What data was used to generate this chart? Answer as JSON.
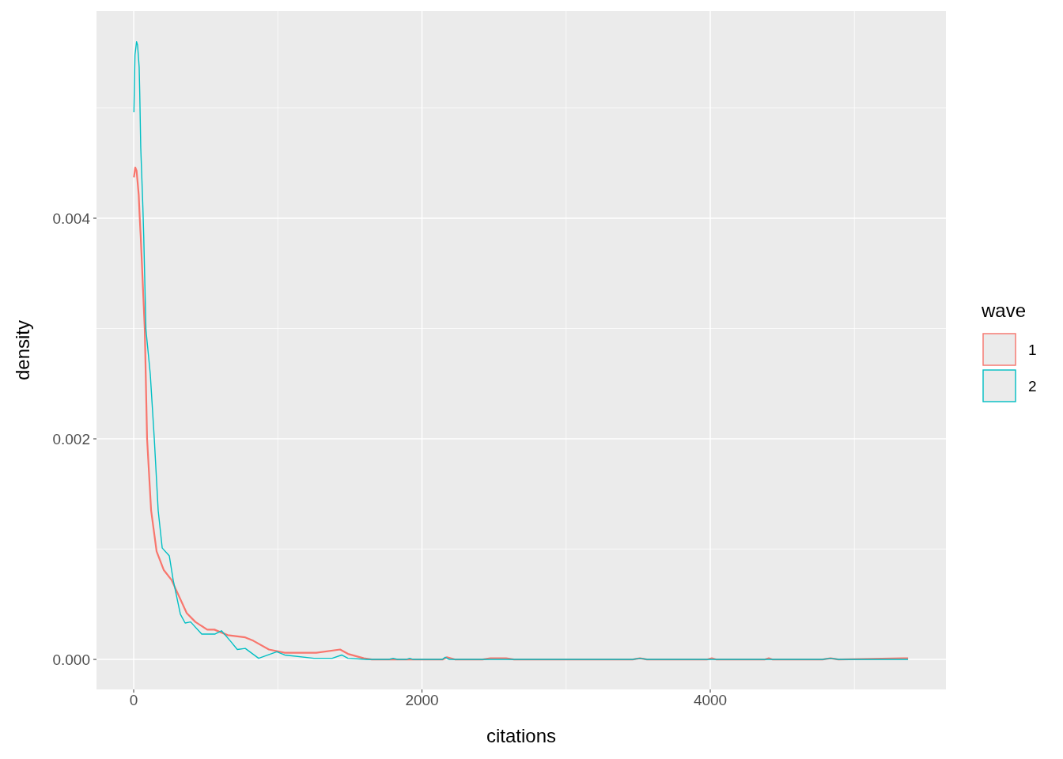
{
  "chart_data": {
    "type": "line",
    "xlabel": "citations",
    "ylabel": "density",
    "legend_title": "wave",
    "legend": "right",
    "grid": true,
    "xlim": [
      -258,
      5635
    ],
    "ylim": [
      -0.000272,
      0.005878
    ],
    "xticks": [
      0,
      2000,
      4000
    ],
    "yticks": [
      {
        "value": 0,
        "label": "0.000"
      },
      {
        "value": 0.002,
        "label": "0.002"
      },
      {
        "value": 0.004,
        "label": "0.004"
      }
    ],
    "series": [
      {
        "name": "1",
        "color": "#f8766d",
        "x": [
          1.6,
          11,
          20,
          27,
          35,
          40,
          46,
          49,
          77,
          93,
          121,
          159,
          209,
          263,
          368,
          428,
          510,
          560,
          653,
          774,
          829,
          938,
          1048,
          1267,
          1432,
          1487,
          1597,
          1652,
          2146,
          2173,
          2228,
          2420,
          2475,
          2584,
          2639,
          3462,
          3512,
          3561,
          3980,
          4011,
          4040,
          4380,
          4406,
          4430,
          4779,
          4834,
          4889,
          5340,
          5372
        ],
        "values": [
          0.00437,
          0.00446,
          0.00443,
          0.00433,
          0.00421,
          0.00406,
          0.0039,
          0.00383,
          0.00299,
          0.002,
          0.00135,
          0.00098,
          0.00081,
          0.00072,
          0.00042,
          0.00034,
          0.00027,
          0.00027,
          0.00022,
          0.0002,
          0.00017,
          9e-05,
          6e-05,
          6e-05,
          9e-05,
          5e-05,
          1e-05,
          0,
          0,
          2e-05,
          0,
          0,
          1e-05,
          1e-05,
          0,
          0,
          1e-05,
          0,
          0,
          1e-05,
          0,
          0,
          1e-05,
          0,
          0,
          1e-05,
          0,
          1e-05,
          1e-05
        ]
      },
      {
        "name": "2",
        "color": "#00bfc4",
        "x": [
          1.6,
          9,
          20,
          27,
          38,
          42,
          49,
          57,
          64,
          70,
          85,
          115,
          143,
          170,
          198,
          247,
          274,
          324,
          357,
          395,
          472,
          565,
          609,
          669,
          719,
          774,
          867,
          993,
          1048,
          1251,
          1284,
          1377,
          1443,
          1487,
          1613,
          1770,
          1800,
          1830,
          1890,
          1915,
          1940,
          2140,
          2162,
          2190,
          3462,
          3512,
          3561,
          4779,
          4834,
          4889,
          5372
        ],
        "values": [
          0.00496,
          0.00548,
          0.0056,
          0.00557,
          0.00537,
          0.00514,
          0.00464,
          0.00435,
          0.00409,
          0.00382,
          0.00299,
          0.00259,
          0.002,
          0.00135,
          0.00101,
          0.00094,
          0.00072,
          0.00041,
          0.00033,
          0.00034,
          0.00023,
          0.00023,
          0.00026,
          0.00017,
          9e-05,
          0.0001,
          1e-05,
          7e-05,
          4e-05,
          1e-05,
          1e-05,
          1e-05,
          4e-05,
          1e-05,
          0,
          0,
          1e-05,
          0,
          0,
          1e-05,
          0,
          0,
          2e-05,
          0,
          0,
          1e-05,
          0,
          0,
          1e-05,
          0,
          0
        ]
      }
    ]
  }
}
